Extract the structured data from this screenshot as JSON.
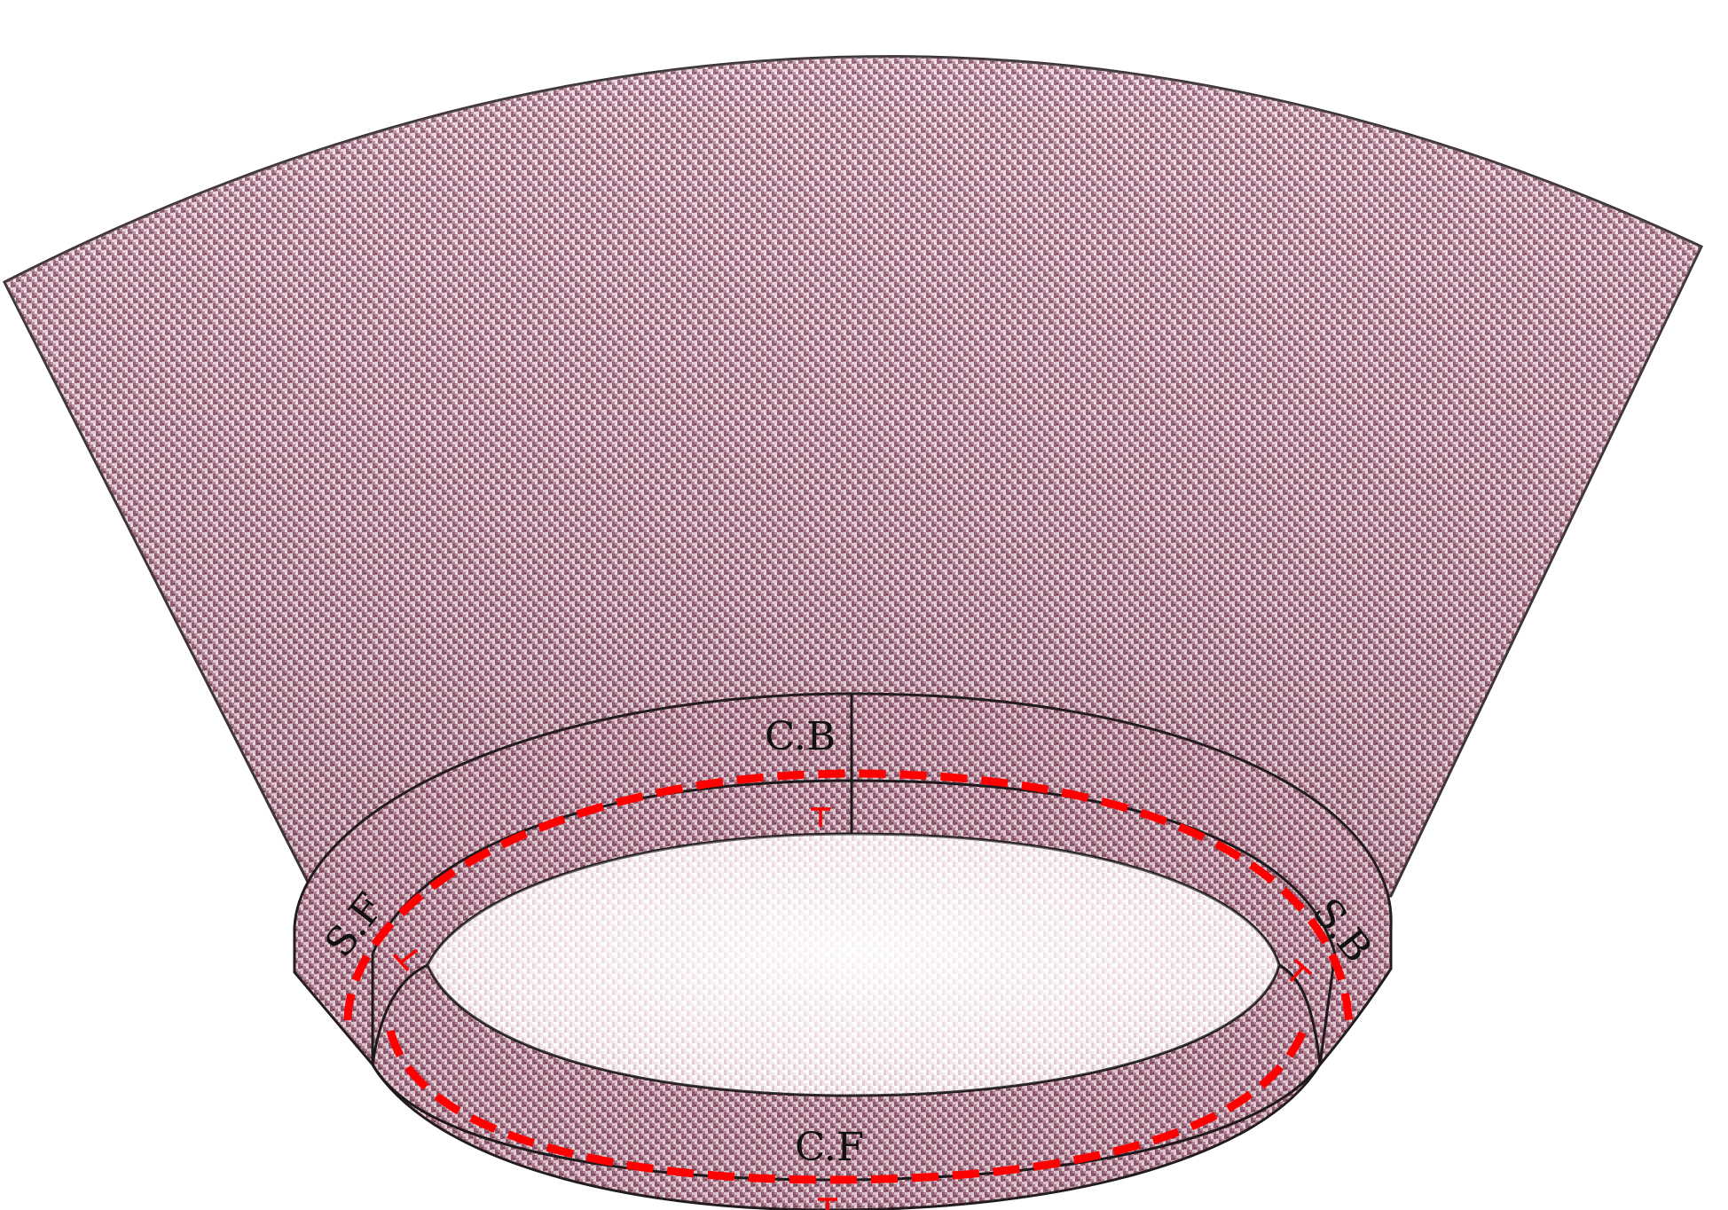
{
  "labels": {
    "center_back": "C.B",
    "center_front": "C.F",
    "side_front": "S.F",
    "side_back": "S.B"
  },
  "colors": {
    "fabric_base": "#b57f94",
    "fabric_dark": "#7a4a5e",
    "fabric_light": "#ecd6df",
    "inner_opening": "#f6ecf0",
    "outline": "#2a2226",
    "seam_dash": "#ff0000",
    "notch": "#ff0000"
  },
  "icons": {
    "notch": "t-notch-mark",
    "seam": "dashed-seam-line"
  }
}
